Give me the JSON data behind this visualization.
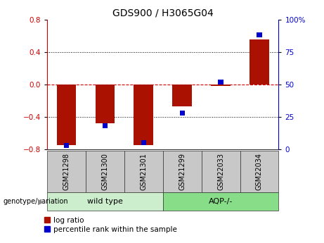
{
  "title": "GDS900 / H3065G04",
  "samples": [
    "GSM21298",
    "GSM21300",
    "GSM21301",
    "GSM21299",
    "GSM22033",
    "GSM22034"
  ],
  "log_ratios": [
    -0.75,
    -0.48,
    -0.75,
    -0.27,
    -0.02,
    0.55
  ],
  "percentile_ranks": [
    3,
    18,
    5,
    28,
    52,
    88
  ],
  "ylim_left": [
    -0.8,
    0.8
  ],
  "ylim_right": [
    0,
    100
  ],
  "yticks_left": [
    -0.8,
    -0.4,
    0.0,
    0.4,
    0.8
  ],
  "yticks_right": [
    0,
    25,
    50,
    75,
    100
  ],
  "bar_color": "#aa1100",
  "pct_color": "#0000cc",
  "zero_line_color": "#cc0000",
  "grid_color": "#000000",
  "bg_color": "#ffffff",
  "plot_bg": "#ffffff",
  "wild_type_label": "wild type",
  "aqp_label": "AQP-/-",
  "genotype_label": "genotype/variation",
  "legend_log_ratio": "log ratio",
  "legend_pct": "percentile rank within the sample",
  "wild_type_color": "#cceecc",
  "aqp_color": "#88dd88",
  "tick_label_color_left": "#cc0000",
  "tick_label_color_right": "#0000cc",
  "bar_width": 0.5,
  "pct_square_size": 0.06
}
